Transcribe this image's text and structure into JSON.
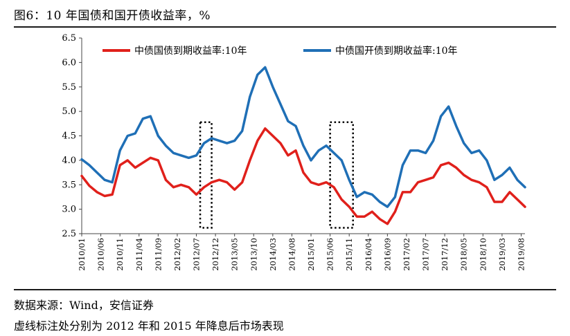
{
  "title": "图6：10 年国债和国开债收益率，%",
  "source": "数据来源：Wind，安信证券",
  "note": "虚线标注处分别为 2012 年和 2015 年降息后市场表现",
  "chart_data": {
    "type": "line",
    "xlabel": "",
    "ylabel": "",
    "ylim": [
      2.5,
      6.5
    ],
    "yticks": [
      "2.5",
      "3.0",
      "3.5",
      "4.0",
      "4.5",
      "5.0",
      "5.5",
      "6.0",
      "6.5"
    ],
    "xlim": [
      "2010/01",
      "2019/09"
    ],
    "xticks": [
      "2010/01",
      "2010/06",
      "2010/11",
      "2011/04",
      "2011/09",
      "2012/02",
      "2012/07",
      "2012/12",
      "2013/05",
      "2013/10",
      "2014/03",
      "2014/08",
      "2015/01",
      "2015/06",
      "2015/11",
      "2016/04",
      "2016/09",
      "2017/02",
      "2017/07",
      "2017/12",
      "2018/05",
      "2018/10",
      "2019/03",
      "2019/08"
    ],
    "legend": "top",
    "grid": false,
    "annotations": [
      {
        "kind": "dashed-box",
        "x_from": "2012/08",
        "x_to": "2012/11",
        "y_from": 2.62,
        "y_to": 4.78
      },
      {
        "kind": "dashed-box",
        "x_from": "2015/06",
        "x_to": "2015/12",
        "y_from": 2.62,
        "y_to": 4.78
      }
    ],
    "x": [
      "2010/01",
      "2010/03",
      "2010/05",
      "2010/07",
      "2010/09",
      "2010/11",
      "2011/01",
      "2011/03",
      "2011/05",
      "2011/07",
      "2011/09",
      "2011/11",
      "2012/01",
      "2012/03",
      "2012/05",
      "2012/07",
      "2012/09",
      "2012/11",
      "2013/01",
      "2013/03",
      "2013/05",
      "2013/07",
      "2013/09",
      "2013/11",
      "2014/01",
      "2014/03",
      "2014/05",
      "2014/07",
      "2014/09",
      "2014/11",
      "2015/01",
      "2015/03",
      "2015/05",
      "2015/07",
      "2015/09",
      "2015/11",
      "2016/01",
      "2016/03",
      "2016/05",
      "2016/07",
      "2016/09",
      "2016/11",
      "2017/01",
      "2017/03",
      "2017/05",
      "2017/07",
      "2017/09",
      "2017/11",
      "2018/01",
      "2018/03",
      "2018/05",
      "2018/07",
      "2018/09",
      "2018/11",
      "2019/01",
      "2019/03",
      "2019/05",
      "2019/07",
      "2019/09"
    ],
    "series": [
      {
        "name": "中债国债到期收益率:10年",
        "color": "#e0201b",
        "values": [
          3.68,
          3.48,
          3.35,
          3.27,
          3.3,
          3.9,
          4.0,
          3.85,
          3.95,
          4.05,
          4.0,
          3.6,
          3.45,
          3.5,
          3.45,
          3.3,
          3.45,
          3.55,
          3.6,
          3.55,
          3.4,
          3.55,
          4.0,
          4.4,
          4.65,
          4.5,
          4.35,
          4.1,
          4.2,
          3.75,
          3.55,
          3.5,
          3.55,
          3.45,
          3.2,
          3.05,
          2.85,
          2.85,
          2.95,
          2.8,
          2.7,
          2.95,
          3.35,
          3.35,
          3.55,
          3.6,
          3.65,
          3.9,
          3.95,
          3.85,
          3.7,
          3.6,
          3.55,
          3.45,
          3.15,
          3.15,
          3.35,
          3.2,
          3.05
        ]
      },
      {
        "name": "中债国开债到期收益率:10年",
        "color": "#1f6fb6",
        "values": [
          4.02,
          3.9,
          3.75,
          3.6,
          3.55,
          4.2,
          4.5,
          4.55,
          4.85,
          4.9,
          4.5,
          4.3,
          4.15,
          4.1,
          4.05,
          4.1,
          4.35,
          4.45,
          4.4,
          4.35,
          4.4,
          4.6,
          5.3,
          5.75,
          5.9,
          5.5,
          5.15,
          4.8,
          4.7,
          4.3,
          4.0,
          4.2,
          4.3,
          4.15,
          4.0,
          3.6,
          3.25,
          3.35,
          3.3,
          3.15,
          3.05,
          3.25,
          3.9,
          4.2,
          4.2,
          4.15,
          4.4,
          4.9,
          5.1,
          4.7,
          4.35,
          4.15,
          4.2,
          4.0,
          3.6,
          3.7,
          3.85,
          3.6,
          3.45
        ]
      }
    ]
  }
}
